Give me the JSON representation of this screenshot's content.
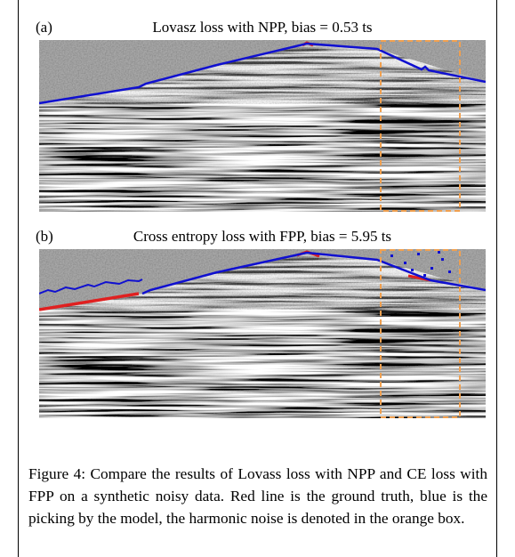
{
  "panels": [
    {
      "label": "(a)",
      "title": "Lovasz loss with NPP, bias = 0.53 ts"
    },
    {
      "label": "(b)",
      "title": "Cross entropy loss with FPP, bias = 5.95 ts"
    }
  ],
  "caption": "Figure 4: Compare the results of Lovass loss with NPP and CE loss with FPP on a synthetic noisy data. Red line is the ground truth, blue is the picking by the model, the harmonic noise is denoted in the orange box."
}
